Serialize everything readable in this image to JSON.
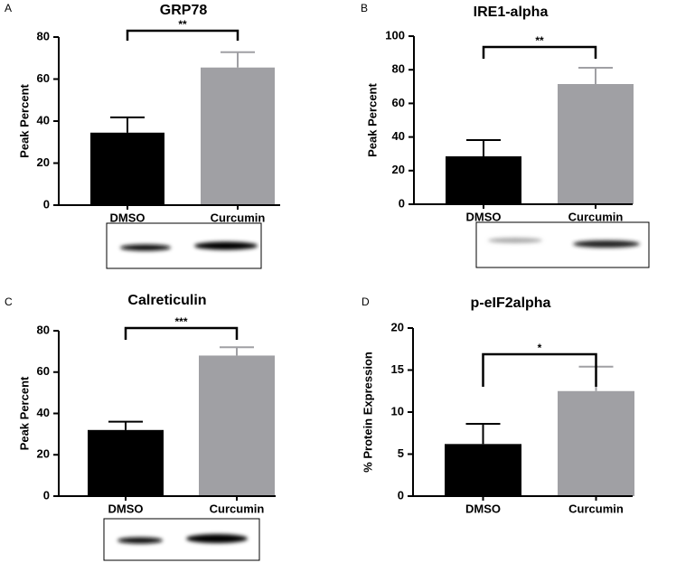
{
  "chart_data": [
    {
      "type": "bar",
      "label": "A",
      "title": "GRP78",
      "y_label": "Peak Percent",
      "categories": [
        "DMSO",
        "Curcumin"
      ],
      "values": [
        34.5,
        65.5
      ],
      "errors": [
        7.3,
        7.3
      ],
      "colors": [
        "#000000",
        "#a0a0a4"
      ],
      "ylim": [
        0,
        80
      ],
      "yticks": [
        0,
        20,
        40,
        60,
        80
      ],
      "significance": "**"
    },
    {
      "type": "bar",
      "label": "B",
      "title": "IRE1-alpha",
      "y_label": "Peak Percent",
      "categories": [
        "DMSO",
        "Curcumin"
      ],
      "values": [
        28.5,
        71.5
      ],
      "errors": [
        9.7,
        9.7
      ],
      "colors": [
        "#000000",
        "#a0a0a4"
      ],
      "ylim": [
        0,
        100
      ],
      "yticks": [
        0,
        20,
        40,
        60,
        80,
        100
      ],
      "significance": "**"
    },
    {
      "type": "bar",
      "label": "C",
      "title": "Calreticulin",
      "y_label": "Peak Percent",
      "categories": [
        "DMSO",
        "Curcumin"
      ],
      "values": [
        32,
        68
      ],
      "errors": [
        4,
        4
      ],
      "colors": [
        "#000000",
        "#a0a0a4"
      ],
      "ylim": [
        0,
        80
      ],
      "yticks": [
        0,
        20,
        40,
        60,
        80
      ],
      "significance": "***"
    },
    {
      "type": "bar",
      "label": "D",
      "title": "p-eIF2alpha",
      "y_label": "% Protein Expression",
      "categories": [
        "DMSO",
        "Curcumin"
      ],
      "values": [
        6.2,
        12.5
      ],
      "errors": [
        2.4,
        2.9
      ],
      "colors": [
        "#000000",
        "#a0a0a4"
      ],
      "ylim": [
        0,
        20
      ],
      "yticks": [
        0,
        5,
        10,
        15,
        20
      ],
      "significance": "*"
    }
  ]
}
